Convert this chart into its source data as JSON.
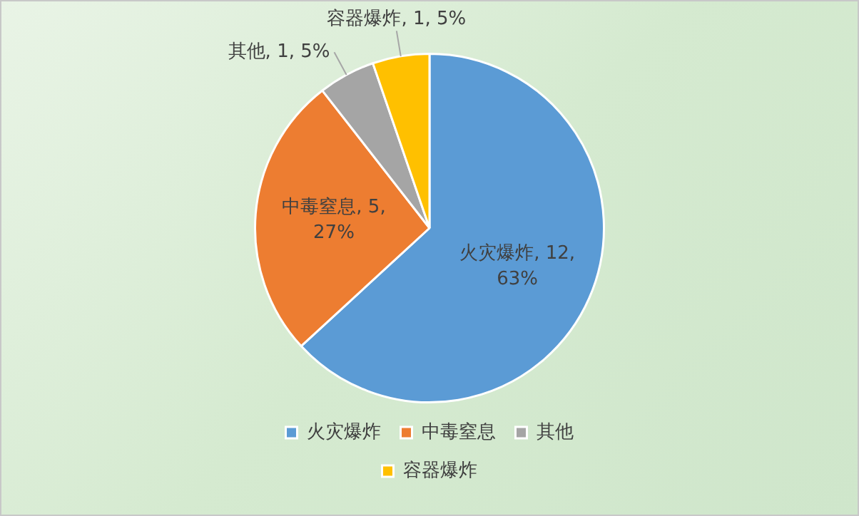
{
  "chart_data": {
    "type": "pie",
    "categories": [
      "火灾爆炸",
      "中毒窒息",
      "其他",
      "容器爆炸"
    ],
    "values": [
      12,
      5,
      1,
      1
    ],
    "colors": [
      "#5b9bd5",
      "#ed7d31",
      "#a5a5a5",
      "#ffc000"
    ],
    "value_labels": [
      "火灾爆炸, 12, 63%",
      "中毒窒息, 5, 27%",
      "其他, 1, 5%",
      "容器爆炸, 1, 5%"
    ],
    "legend": "bottom"
  }
}
